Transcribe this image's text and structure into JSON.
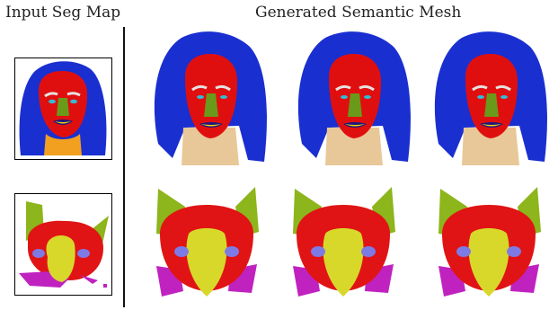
{
  "headers": {
    "input": "Input Seg Map",
    "generated": "Generated Semantic Mesh"
  },
  "colors": {
    "hair": "#1a2fd0",
    "skin": "#e00f0f",
    "nose": "#6a9a1a",
    "brow": "#e8e0e0",
    "eye": "#33bbd6",
    "mouth": "#f0d010",
    "lip": "#1a1a80",
    "neck": "#f2a020",
    "neck_mesh": "#e8c898",
    "cat_face": "#e01414",
    "cat_ear": "#8db51c",
    "cat_muzzle": "#d8d82a",
    "cat_eye": "#7d7ae6",
    "cat_whisker": "#c022c0"
  },
  "rows": [
    {
      "subject": "human-face",
      "mesh_count": 3
    },
    {
      "subject": "cat-face",
      "mesh_count": 3
    }
  ]
}
